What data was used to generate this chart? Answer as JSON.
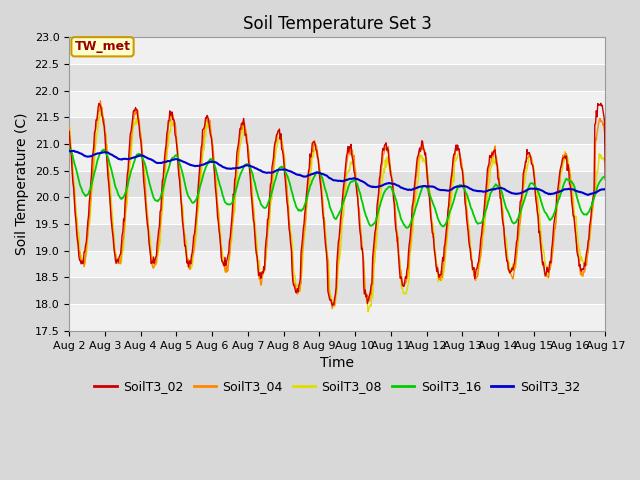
{
  "title": "Soil Temperature Set 3",
  "xlabel": "Time",
  "ylabel": "Soil Temperature (C)",
  "ylim": [
    17.5,
    23.0
  ],
  "yticks": [
    17.5,
    18.0,
    18.5,
    19.0,
    19.5,
    20.0,
    20.5,
    21.0,
    21.5,
    22.0,
    22.5,
    23.0
  ],
  "xtick_labels": [
    "Aug 2",
    "Aug 3",
    "Aug 4",
    "Aug 5",
    "Aug 6",
    "Aug 7",
    "Aug 8",
    "Aug 9",
    "Aug 10",
    "Aug 11",
    "Aug 12",
    "Aug 13",
    "Aug 14",
    "Aug 15",
    "Aug 16",
    "Aug 17"
  ],
  "series_colors": {
    "SoilT3_02": "#cc0000",
    "SoilT3_04": "#ff8800",
    "SoilT3_08": "#dddd00",
    "SoilT3_16": "#00cc00",
    "SoilT3_32": "#0000cc"
  },
  "annotation_text": "TW_met",
  "annotation_color": "#990000",
  "annotation_bg": "#ffffcc",
  "annotation_border": "#cc9900",
  "band_colors": [
    "#f0f0f0",
    "#e0e0e0"
  ],
  "title_fontsize": 12,
  "axis_label_fontsize": 10,
  "tick_fontsize": 8,
  "legend_fontsize": 9
}
